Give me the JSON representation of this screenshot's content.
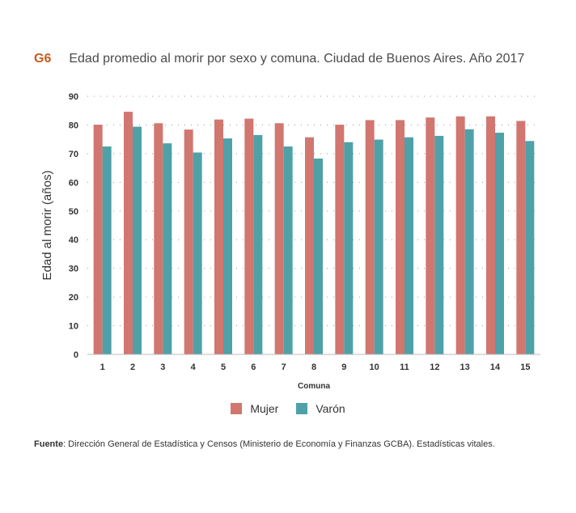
{
  "header": {
    "code": "G6",
    "title": "Edad promedio al morir por sexo y comuna. Ciudad de Buenos Aires. Año 2017"
  },
  "colors": {
    "mujer": "#d27670",
    "varon": "#4fa1a8",
    "code": "#c8591f"
  },
  "chart_data": {
    "type": "bar",
    "xlabel": "Comuna",
    "ylabel": "Edad al morir (años)",
    "ylim": [
      0,
      90
    ],
    "yticks": [
      0,
      10,
      20,
      30,
      40,
      50,
      60,
      70,
      80,
      90
    ],
    "grid": "horizontal-dotted",
    "legend_position": "bottom-center",
    "categories": [
      "1",
      "2",
      "3",
      "4",
      "5",
      "6",
      "7",
      "8",
      "9",
      "10",
      "11",
      "12",
      "13",
      "14",
      "15"
    ],
    "series": [
      {
        "name": "Mujer",
        "values": [
          80.1,
          84.6,
          80.6,
          78.4,
          81.9,
          82.2,
          80.6,
          75.7,
          80.1,
          81.7,
          81.7,
          82.6,
          83.0,
          83.0,
          81.4
        ]
      },
      {
        "name": "Varón",
        "values": [
          72.5,
          79.4,
          73.6,
          70.4,
          75.3,
          76.5,
          72.5,
          68.3,
          74.0,
          74.9,
          75.7,
          76.2,
          78.5,
          77.3,
          74.4
        ]
      }
    ]
  },
  "source": {
    "label": "Fuente",
    "text": ": Dirección General de Estadística y Censos (Ministerio de Economía y Finanzas GCBA). Estadísticas vitales."
  }
}
